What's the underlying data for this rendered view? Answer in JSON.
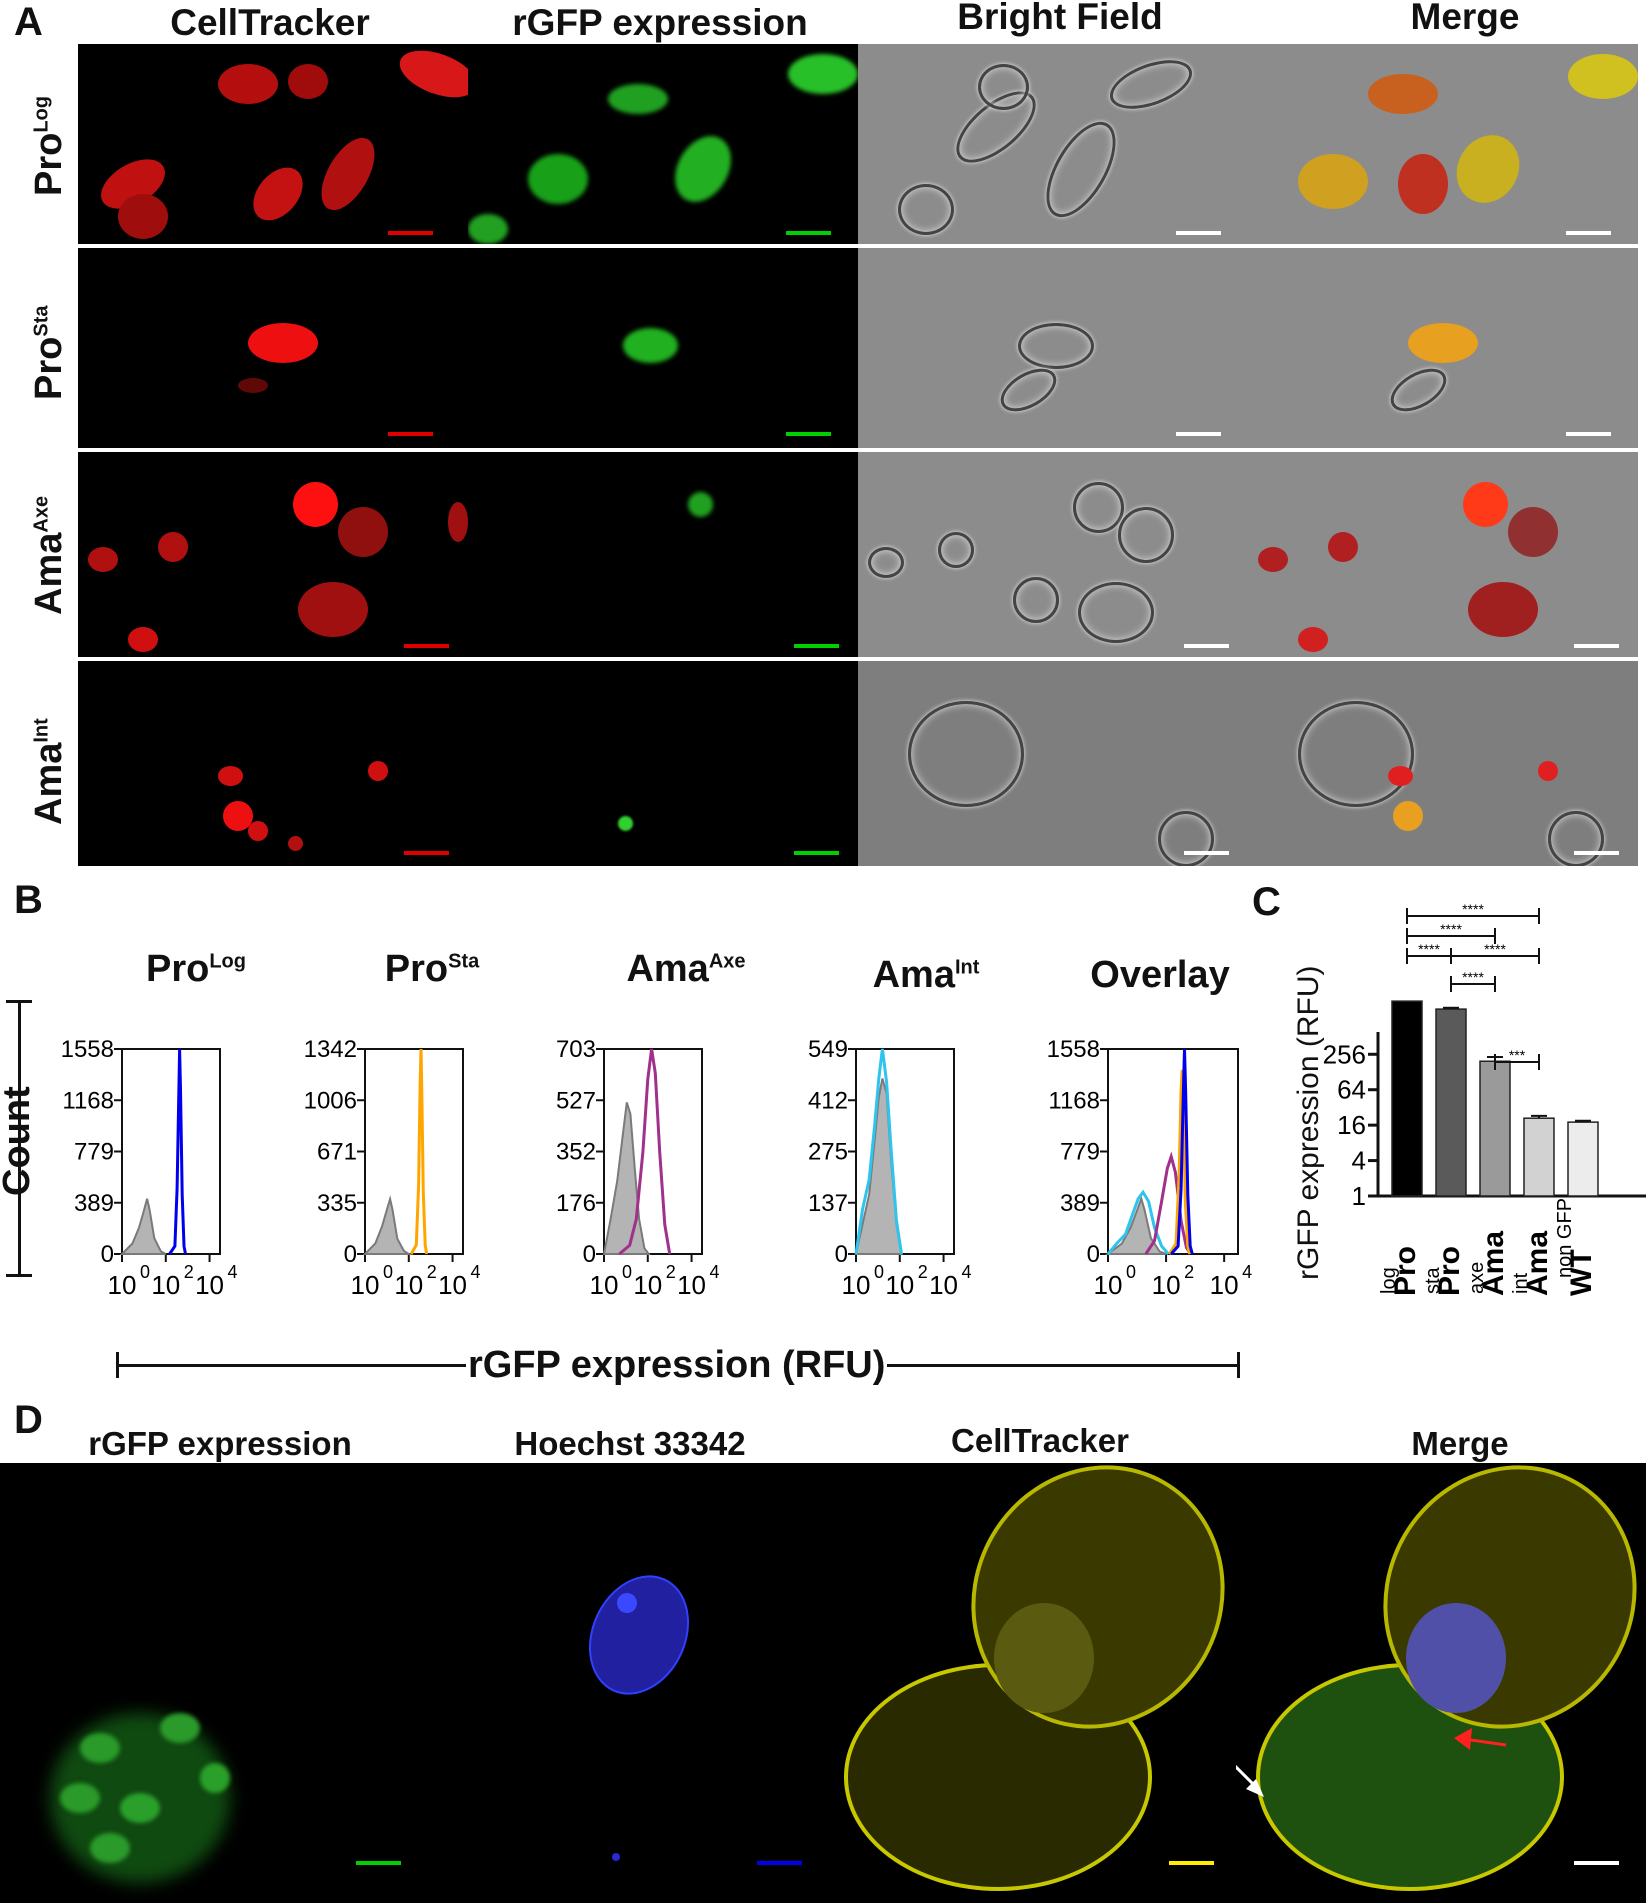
{
  "panelA": {
    "letter": "A",
    "columns": [
      "CellTracker",
      "rGFP expression",
      "Bright Field",
      "Merge"
    ],
    "rows": [
      {
        "base": "Pro",
        "sup": "Log"
      },
      {
        "base": "Pro",
        "sup": "Sta"
      },
      {
        "base": "Ama",
        "sup": "Axe"
      },
      {
        "base": "Ama",
        "sup": "Int"
      }
    ]
  },
  "panelB": {
    "letter": "B",
    "y_axis_label": "Count",
    "x_axis_label": "rGFP expression (RFU)",
    "x_tick_base": "10",
    "x_tick_exponents": [
      "0",
      "2",
      "4"
    ]
  },
  "panelC": {
    "letter": "C",
    "y_axis_label": "rGFP expression (RFU)",
    "significance": [
      "****",
      "****",
      "****",
      "****",
      "****",
      "***"
    ]
  },
  "panelD": {
    "letter": "D",
    "columns": [
      "rGFP expression",
      "Hoechst 33342",
      "CellTracker",
      "Merge"
    ]
  },
  "colors": {
    "ProLog": "#0000ee",
    "ProSta": "#ffa500",
    "AmaAxe": "#a0308c",
    "AmaInt": "#2ec4ee",
    "control_fill": "#b4b4b4",
    "control_line": "#7a7a7a"
  },
  "chart_data": [
    {
      "type": "area",
      "title": "Pro^Log",
      "title_base": "Pro",
      "title_sup": "Log",
      "x_scale": "log",
      "xlim": [
        1,
        30000
      ],
      "ylim": [
        0,
        1558
      ],
      "yticks": [
        "1558",
        "1168",
        "779",
        "389",
        "0"
      ],
      "series": [
        {
          "name": "control",
          "color": "#b4b4b4",
          "points": [
            [
              1,
              0
            ],
            [
              3,
              80
            ],
            [
              6,
              200
            ],
            [
              10,
              330
            ],
            [
              14,
              420
            ],
            [
              18,
              340
            ],
            [
              30,
              120
            ],
            [
              60,
              20
            ],
            [
              100,
              0
            ]
          ]
        },
        {
          "name": "Pro^Log",
          "color": "#0000ee",
          "points": [
            [
              150,
              0
            ],
            [
              260,
              60
            ],
            [
              330,
              500
            ],
            [
              400,
              1300
            ],
            [
              430,
              1558
            ],
            [
              470,
              1250
            ],
            [
              560,
              450
            ],
            [
              680,
              60
            ],
            [
              800,
              0
            ]
          ]
        }
      ]
    },
    {
      "type": "area",
      "title": "Pro^Sta",
      "title_base": "Pro",
      "title_sup": "Sta",
      "x_scale": "log",
      "xlim": [
        1,
        30000
      ],
      "ylim": [
        0,
        1342
      ],
      "yticks": [
        "1342",
        "1006",
        "671",
        "335",
        "0"
      ],
      "series": [
        {
          "name": "control",
          "color": "#b4b4b4",
          "points": [
            [
              1,
              0
            ],
            [
              3,
              70
            ],
            [
              6,
              180
            ],
            [
              10,
              290
            ],
            [
              14,
              360
            ],
            [
              18,
              290
            ],
            [
              30,
              100
            ],
            [
              60,
              20
            ],
            [
              100,
              0
            ]
          ]
        },
        {
          "name": "Pro^Sta",
          "color": "#ffa500",
          "points": [
            [
              130,
              0
            ],
            [
              220,
              60
            ],
            [
              280,
              450
            ],
            [
              330,
              1100
            ],
            [
              360,
              1342
            ],
            [
              390,
              1100
            ],
            [
              460,
              400
            ],
            [
              560,
              60
            ],
            [
              650,
              0
            ]
          ]
        }
      ]
    },
    {
      "type": "area",
      "title": "Ama^Axe",
      "title_base": "Ama",
      "title_sup": "Axe",
      "x_scale": "log",
      "xlim": [
        1,
        30000
      ],
      "ylim": [
        0,
        703
      ],
      "yticks": [
        "703",
        "527",
        "352",
        "176",
        "0"
      ],
      "series": [
        {
          "name": "control",
          "color": "#b4b4b4",
          "points": [
            [
              1,
              0
            ],
            [
              2,
              120
            ],
            [
              4,
              250
            ],
            [
              7,
              400
            ],
            [
              11,
              520
            ],
            [
              16,
              480
            ],
            [
              25,
              300
            ],
            [
              40,
              120
            ],
            [
              70,
              20
            ],
            [
              110,
              0
            ]
          ]
        },
        {
          "name": "Ama^Axe",
          "color": "#a0308c",
          "points": [
            [
              5,
              0
            ],
            [
              15,
              30
            ],
            [
              30,
              120
            ],
            [
              60,
              350
            ],
            [
              100,
              600
            ],
            [
              150,
              703
            ],
            [
              220,
              620
            ],
            [
              350,
              350
            ],
            [
              600,
              100
            ],
            [
              1000,
              0
            ]
          ]
        }
      ]
    },
    {
      "type": "area",
      "title": "Ama^Int",
      "title_base": "Ama",
      "title_sup": "Int",
      "x_scale": "log",
      "xlim": [
        1,
        30000
      ],
      "ylim": [
        0,
        549
      ],
      "yticks": [
        "549",
        "412",
        "275",
        "137",
        "0"
      ],
      "series": [
        {
          "name": "control",
          "color": "#b4b4b4",
          "points": [
            [
              1,
              0
            ],
            [
              2,
              80
            ],
            [
              4,
              160
            ],
            [
              7,
              300
            ],
            [
              11,
              420
            ],
            [
              16,
              470
            ],
            [
              25,
              430
            ],
            [
              40,
              250
            ],
            [
              70,
              80
            ],
            [
              120,
              0
            ]
          ]
        },
        {
          "name": "Ama^Int",
          "color": "#2ec4ee",
          "points": [
            [
              1,
              0
            ],
            [
              2,
              120
            ],
            [
              4,
              200
            ],
            [
              7,
              340
            ],
            [
              11,
              470
            ],
            [
              16,
              549
            ],
            [
              25,
              460
            ],
            [
              40,
              280
            ],
            [
              70,
              90
            ],
            [
              120,
              0
            ]
          ]
        }
      ]
    },
    {
      "type": "area",
      "title": "Overlay",
      "title_base": "Overlay",
      "title_sup": "",
      "x_scale": "log",
      "xlim": [
        1,
        30000
      ],
      "ylim": [
        0,
        1558
      ],
      "yticks": [
        "1558",
        "1168",
        "779",
        "389",
        "0"
      ],
      "series": [
        {
          "name": "control",
          "color": "#b4b4b4",
          "points": [
            [
              1,
              0
            ],
            [
              3,
              80
            ],
            [
              6,
              200
            ],
            [
              10,
              330
            ],
            [
              14,
              420
            ],
            [
              18,
              340
            ],
            [
              30,
              120
            ],
            [
              60,
              20
            ],
            [
              100,
              0
            ]
          ]
        },
        {
          "name": "Ama^Int",
          "color": "#2ec4ee",
          "points": [
            [
              1,
              0
            ],
            [
              2,
              80
            ],
            [
              4,
              150
            ],
            [
              7,
              300
            ],
            [
              11,
              420
            ],
            [
              16,
              470
            ],
            [
              25,
              400
            ],
            [
              40,
              200
            ],
            [
              70,
              60
            ],
            [
              120,
              0
            ]
          ]
        },
        {
          "name": "Ama^Axe",
          "color": "#a0308c",
          "points": [
            [
              20,
              0
            ],
            [
              40,
              100
            ],
            [
              70,
              400
            ],
            [
              110,
              650
            ],
            [
              150,
              740
            ],
            [
              210,
              620
            ],
            [
              330,
              250
            ],
            [
              500,
              50
            ],
            [
              700,
              0
            ]
          ]
        },
        {
          "name": "Pro^Sta",
          "color": "#ffa500",
          "points": [
            [
              130,
              0
            ],
            [
              220,
              80
            ],
            [
              280,
              600
            ],
            [
              330,
              1250
            ],
            [
              360,
              1400
            ],
            [
              390,
              1200
            ],
            [
              460,
              400
            ],
            [
              560,
              60
            ],
            [
              650,
              0
            ]
          ]
        },
        {
          "name": "Pro^Log",
          "color": "#0000ee",
          "points": [
            [
              150,
              0
            ],
            [
              260,
              60
            ],
            [
              330,
              500
            ],
            [
              400,
              1300
            ],
            [
              430,
              1558
            ],
            [
              470,
              1250
            ],
            [
              560,
              450
            ],
            [
              680,
              60
            ],
            [
              800,
              0
            ]
          ]
        }
      ]
    },
    {
      "type": "bar",
      "y_scale": "log2",
      "ylim": [
        1,
        16384
      ],
      "yticks": [
        "1",
        "4",
        "16",
        "64",
        "256",
        "1024",
        "4096"
      ],
      "ylabel": "rGFP expression (RFU)",
      "categories": [
        {
          "base": "Pro",
          "sup": "log"
        },
        {
          "base": "Pro",
          "sup": "sta"
        },
        {
          "base": "Ama",
          "sup": "axe"
        },
        {
          "base": "Ama",
          "sup": "int"
        },
        {
          "base": "WT",
          "sup": "non GFP"
        }
      ],
      "values": [
        2048,
        1500,
        195,
        21,
        18
      ],
      "errors": [
        0,
        80,
        35,
        2,
        1
      ],
      "bar_colors": [
        "#000000",
        "#5a5a5a",
        "#9a9a9a",
        "#d2d2d2",
        "#ececec"
      ],
      "comparisons": [
        {
          "from": 0,
          "to": 3,
          "label": "****"
        },
        {
          "from": 0,
          "to": 2,
          "label": "****"
        },
        {
          "from": 0,
          "to": 1,
          "label": "****"
        },
        {
          "from": 1,
          "to": 3,
          "label": "****"
        },
        {
          "from": 1,
          "to": 2,
          "label": "****"
        },
        {
          "from": 2,
          "to": 3,
          "label": "***"
        }
      ]
    }
  ]
}
